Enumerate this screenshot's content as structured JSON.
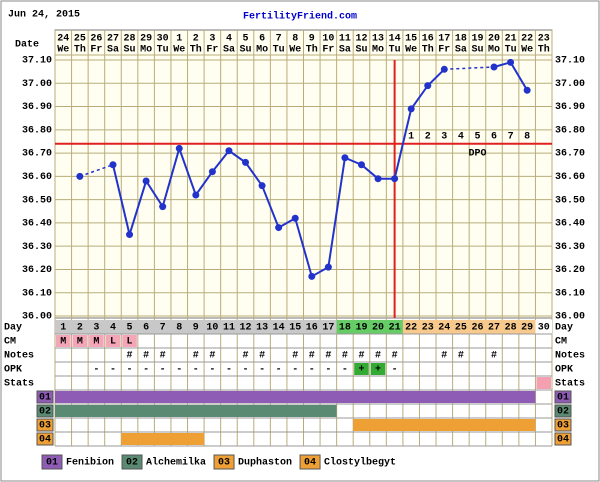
{
  "header": {
    "date": "Jun 24, 2015",
    "site": "FertilityFriend.com"
  },
  "chart_data": {
    "type": "line",
    "date_label": "Date",
    "day_label": "Day",
    "dates": [
      "24",
      "25",
      "26",
      "27",
      "28",
      "29",
      "30",
      "1",
      "2",
      "3",
      "4",
      "5",
      "6",
      "7",
      "8",
      "9",
      "10",
      "11",
      "12",
      "13",
      "14",
      "15",
      "16",
      "17",
      "18",
      "19",
      "20",
      "21",
      "22",
      "23"
    ],
    "weekdays": [
      "We",
      "Th",
      "Fr",
      "Sa",
      "Su",
      "Mo",
      "Tu",
      "We",
      "Th",
      "Fr",
      "Sa",
      "Su",
      "Mo",
      "Tu",
      "We",
      "Th",
      "Fr",
      "Sa",
      "Su",
      "Mo",
      "Tu",
      "We",
      "Th",
      "Fr",
      "Sa",
      "Su",
      "Mo",
      "Tu",
      "We",
      "Th"
    ],
    "categories": [
      1,
      2,
      3,
      4,
      5,
      6,
      7,
      8,
      9,
      10,
      11,
      12,
      13,
      14,
      15,
      16,
      17,
      18,
      19,
      20,
      21,
      22,
      23,
      24,
      25,
      26,
      27,
      28,
      29,
      30
    ],
    "phases": [
      {
        "from": 1,
        "to": 17,
        "color": "#c8c8c8"
      },
      {
        "from": 18,
        "to": 21,
        "color": "#66cc66"
      },
      {
        "from": 22,
        "to": 29,
        "color": "#f7c98c"
      },
      {
        "from": 30,
        "to": 30,
        "color": "#ffffff"
      }
    ],
    "series": [
      {
        "color": "#2233cc",
        "values": [
          null,
          36.6,
          null,
          36.65,
          36.35,
          36.58,
          36.47,
          36.72,
          36.52,
          36.62,
          36.71,
          36.66,
          36.56,
          36.38,
          36.42,
          36.17,
          36.21,
          36.68,
          36.65,
          36.59,
          36.59,
          36.89,
          36.99,
          37.06,
          null,
          null,
          37.07,
          37.09,
          36.97,
          null
        ]
      }
    ],
    "ylim": [
      36.0,
      37.1
    ],
    "yticks": [
      {
        "value": 36.0,
        "label": "36.00"
      },
      {
        "value": 36.1,
        "label": "36.10"
      },
      {
        "value": 36.2,
        "label": "36.20"
      },
      {
        "value": 36.3,
        "label": "36.30"
      },
      {
        "value": 36.4,
        "label": "36.40"
      },
      {
        "value": 36.5,
        "label": "36.50"
      },
      {
        "value": 36.6,
        "label": "36.60"
      },
      {
        "value": 36.7,
        "label": "36.70"
      },
      {
        "value": 36.8,
        "label": "36.80"
      },
      {
        "value": 36.9,
        "label": "36.90"
      },
      {
        "value": 37.0,
        "label": "37.00"
      },
      {
        "value": 37.1,
        "label": "37.10"
      }
    ],
    "grid": true,
    "coverline": 36.74,
    "ovulation_day": 21,
    "marker_color": "#e02020",
    "dpo_label": "DPO",
    "dpo": [
      null,
      null,
      null,
      null,
      null,
      null,
      null,
      null,
      null,
      null,
      null,
      null,
      null,
      null,
      null,
      null,
      null,
      null,
      null,
      null,
      null,
      1,
      2,
      3,
      4,
      5,
      6,
      7,
      8,
      null
    ],
    "rows": [
      {
        "label": "CM",
        "values": [
          "M",
          "M",
          "M",
          "L",
          "L",
          null,
          null,
          null,
          null,
          null,
          null,
          null,
          null,
          null,
          null,
          null,
          null,
          null,
          null,
          null,
          null,
          null,
          null,
          null,
          null,
          null,
          null,
          null,
          null,
          null
        ],
        "fill_days": [
          1,
          2,
          3,
          4,
          5
        ],
        "fill": "#f4a6b8"
      },
      {
        "label": "Notes",
        "values": [
          null,
          null,
          null,
          null,
          "#",
          "#",
          "#",
          null,
          "#",
          "#",
          null,
          "#",
          "#",
          null,
          "#",
          "#",
          "#",
          "#",
          "#",
          "#",
          "#",
          null,
          null,
          "#",
          "#",
          null,
          "#",
          null,
          null,
          null
        ]
      },
      {
        "label": "OPK",
        "values": [
          null,
          null,
          "-",
          "-",
          "-",
          "-",
          "-",
          "-",
          "-",
          "-",
          "-",
          "-",
          "-",
          "-",
          "-",
          "-",
          "-",
          "-",
          "+",
          "+",
          "-",
          null,
          null,
          null,
          null,
          null,
          null,
          null,
          null,
          null
        ],
        "fill_days": [
          19,
          20
        ],
        "fill": "#33aa33"
      },
      {
        "label": "Stats",
        "fill_days": [
          30
        ],
        "fill": "#f4a0b0"
      }
    ],
    "medications": [
      {
        "code": "01",
        "name": "Fenibion",
        "color": "#8e5bb5",
        "from": 1,
        "to": 29
      },
      {
        "code": "02",
        "name": "Alchemilka",
        "color": "#5a8a72",
        "from": 1,
        "to": 17
      },
      {
        "code": "03",
        "name": "Duphaston",
        "color": "#eea035",
        "from": 19,
        "to": 29
      },
      {
        "code": "04",
        "name": "Clostylbegyt",
        "color": "#eea035",
        "from": 5,
        "to": 9
      }
    ]
  }
}
